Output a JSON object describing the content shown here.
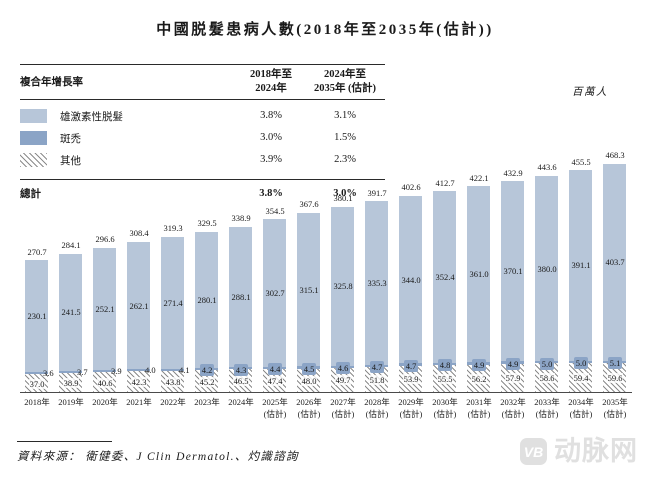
{
  "title": "中國脱髮患病人數(2018年至2035年(估計))",
  "unit_label": "百萬人",
  "cagr_table": {
    "header": {
      "label": "複合年增長率",
      "col1": "2018年至\n2024年",
      "col2": "2024年至\n2035年 (估計)"
    },
    "rows": [
      {
        "label": "雄激素性脱髮",
        "v1": "3.8%",
        "v2": "3.1%",
        "swatch": "light-blue"
      },
      {
        "label": "斑禿",
        "v1": "3.0%",
        "v2": "1.5%",
        "swatch": "dark-blue"
      },
      {
        "label": "其他",
        "v1": "3.9%",
        "v2": "2.3%",
        "swatch": "diagonal-hatch"
      }
    ],
    "total": {
      "label": "總計",
      "v1": "3.8%",
      "v2": "3.0%"
    }
  },
  "chart_data": {
    "type": "bar",
    "subtype": "stacked-vertical",
    "title": "中國脱髮患病人數(2018年至2035年(估計))",
    "ylabel": "百萬人",
    "ylim": [
      0,
      480
    ],
    "grid": false,
    "categories": [
      "2018年",
      "2019年",
      "2020年",
      "2021年",
      "2022年",
      "2023年",
      "2024年",
      "2025年",
      "2026年",
      "2027年",
      "2028年",
      "2029年",
      "2030年",
      "2031年",
      "2032年",
      "2033年",
      "2034年",
      "2035年"
    ],
    "estimate_suffix": "(估計)",
    "estimated_from_index": 7,
    "series": [
      {
        "name": "雄激素性脱髮",
        "color": "#b7c6d9",
        "values": [
          230.1,
          241.5,
          252.1,
          262.1,
          271.4,
          280.1,
          288.1,
          302.7,
          315.1,
          325.8,
          335.3,
          344.0,
          352.4,
          361.0,
          370.1,
          380.0,
          391.1,
          403.7
        ]
      },
      {
        "name": "斑禿",
        "color": "#8ba4c6",
        "values": [
          3.6,
          3.7,
          3.9,
          4.0,
          4.1,
          4.2,
          4.3,
          4.4,
          4.5,
          4.6,
          4.7,
          4.7,
          4.8,
          4.9,
          4.9,
          5.0,
          5.0,
          5.1
        ]
      },
      {
        "name": "其他",
        "color": "diagonal-hatch",
        "values": [
          37.0,
          38.9,
          40.6,
          42.3,
          43.8,
          45.2,
          46.5,
          47.4,
          48.0,
          49.7,
          51.8,
          53.9,
          55.5,
          56.2,
          57.9,
          58.6,
          59.4,
          59.6
        ]
      }
    ],
    "totals": [
      270.7,
      284.1,
      296.6,
      308.4,
      319.3,
      329.5,
      338.9,
      354.5,
      367.6,
      380.1,
      391.7,
      402.6,
      412.7,
      422.1,
      432.9,
      443.6,
      455.5,
      468.3
    ]
  },
  "footer": {
    "source_label": "資料來源：",
    "source_text": "衛健委、J Clin Dermatol.、灼識諮詢"
  },
  "watermark": {
    "monogram": "VB",
    "text": "动脉网"
  },
  "colors": {
    "bar_light": "#b7c6d9",
    "bar_dark": "#8ba4c6",
    "hatch_line": "#8c8c8c",
    "text": "#1a1a1a",
    "watermark": "#e0e0e0"
  }
}
